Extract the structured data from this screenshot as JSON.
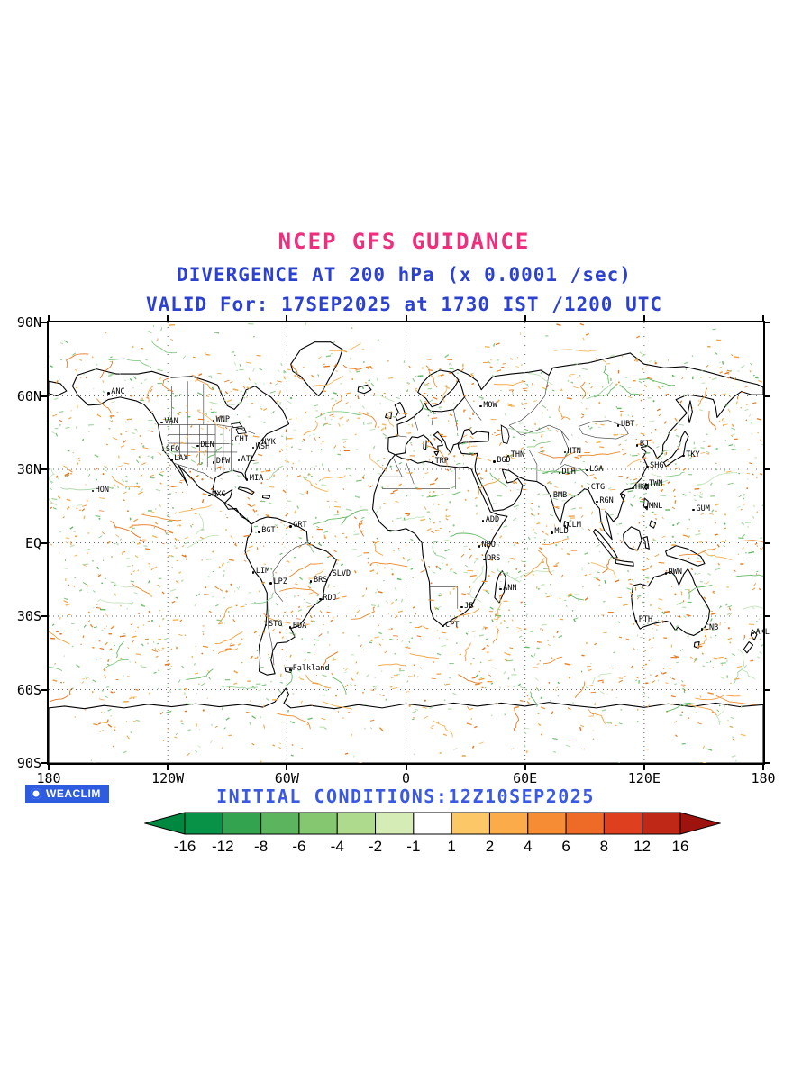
{
  "titles": {
    "main": "NCEP GFS GUIDANCE",
    "sub": "DIVERGENCE AT 200 hPa (x 0.0001 /sec)",
    "valid": "VALID For: 17SEP2025 at 1730 IST /1200 UTC"
  },
  "map": {
    "lat_ticks": [
      "90N",
      "60N",
      "30N",
      "EQ",
      "30S",
      "60S",
      "90S"
    ],
    "lon_ticks": [
      "180",
      "120W",
      "60W",
      "0",
      "60E",
      "120E",
      "180"
    ],
    "stations": [
      {
        "label": "ANC",
        "lon": -149.9,
        "lat": 61.2
      },
      {
        "label": "VAN",
        "lon": -123.1,
        "lat": 49.3
      },
      {
        "label": "WNP",
        "lon": -97.1,
        "lat": 49.9
      },
      {
        "label": "SFO",
        "lon": -122.4,
        "lat": 37.8
      },
      {
        "label": "LAX",
        "lon": -118.2,
        "lat": 34.0
      },
      {
        "label": "DEN",
        "lon": -104.9,
        "lat": 39.7
      },
      {
        "label": "DFW",
        "lon": -97.0,
        "lat": 32.9
      },
      {
        "label": "CHI",
        "lon": -87.6,
        "lat": 41.8
      },
      {
        "label": "NYK",
        "lon": -74.0,
        "lat": 40.7
      },
      {
        "label": "WSH",
        "lon": -77.0,
        "lat": 38.9
      },
      {
        "label": "ATL",
        "lon": -84.4,
        "lat": 33.7
      },
      {
        "label": "MIA",
        "lon": -80.2,
        "lat": 25.8
      },
      {
        "label": "HON",
        "lon": -157.9,
        "lat": 21.3
      },
      {
        "label": "MXC",
        "lon": -99.1,
        "lat": 19.4
      },
      {
        "label": "BGT",
        "lon": -74.1,
        "lat": 4.6
      },
      {
        "label": "GRT",
        "lon": -58.2,
        "lat": 6.8
      },
      {
        "label": "LIM",
        "lon": -77.0,
        "lat": -12.0
      },
      {
        "label": "LPZ",
        "lon": -68.1,
        "lat": -16.5
      },
      {
        "label": "SLVD",
        "lon": -38.5,
        "lat": -12.9
      },
      {
        "label": "BRS",
        "lon": -47.9,
        "lat": -15.8
      },
      {
        "label": "RDJ",
        "lon": -43.2,
        "lat": -22.9
      },
      {
        "label": "STG",
        "lon": -70.6,
        "lat": -33.5
      },
      {
        "label": "BUA",
        "lon": -58.4,
        "lat": -34.6
      },
      {
        "label": "Falkland",
        "lon": -58.5,
        "lat": -51.8
      },
      {
        "label": "MOW",
        "lon": 37.6,
        "lat": 55.8
      },
      {
        "label": "TRP",
        "lon": 13.2,
        "lat": 32.9
      },
      {
        "label": "BGD",
        "lon": 44.4,
        "lat": 33.3
      },
      {
        "label": "ADD",
        "lon": 38.7,
        "lat": 9.0
      },
      {
        "label": "NBO",
        "lon": 36.8,
        "lat": -1.3
      },
      {
        "label": "DRS",
        "lon": 39.3,
        "lat": -6.8
      },
      {
        "label": "ANN",
        "lon": 47.5,
        "lat": -18.9
      },
      {
        "label": "CPT",
        "lon": 18.4,
        "lat": -33.9
      },
      {
        "label": "JB",
        "lon": 28.0,
        "lat": -26.2
      },
      {
        "label": "MLD",
        "lon": 73.5,
        "lat": 4.2
      },
      {
        "label": "CLM",
        "lon": 79.9,
        "lat": 6.9
      },
      {
        "label": "THN",
        "lon": 51.4,
        "lat": 35.7
      },
      {
        "label": "DLH",
        "lon": 77.2,
        "lat": 28.6
      },
      {
        "label": "BMB",
        "lon": 72.8,
        "lat": 19.0
      },
      {
        "label": "CTG",
        "lon": 91.8,
        "lat": 22.3
      },
      {
        "label": "RGN",
        "lon": 96.2,
        "lat": 16.8
      },
      {
        "label": "HTN",
        "lon": 79.9,
        "lat": 37.1
      },
      {
        "label": "LSA",
        "lon": 91.1,
        "lat": 29.7
      },
      {
        "label": "UBT",
        "lon": 106.9,
        "lat": 47.9
      },
      {
        "label": "BJ",
        "lon": 116.4,
        "lat": 39.9
      },
      {
        "label": "SHG",
        "lon": 121.5,
        "lat": 31.2
      },
      {
        "label": "TKY",
        "lon": 139.7,
        "lat": 35.7
      },
      {
        "label": "TWN",
        "lon": 121.0,
        "lat": 23.8
      },
      {
        "label": "HKN",
        "lon": 114.2,
        "lat": 22.3
      },
      {
        "label": "MNL",
        "lon": 121.0,
        "lat": 14.6
      },
      {
        "label": "GUM",
        "lon": 144.8,
        "lat": 13.5
      },
      {
        "label": "DWN",
        "lon": 130.8,
        "lat": -12.5
      },
      {
        "label": "PTH",
        "lon": 115.9,
        "lat": -32.0
      },
      {
        "label": "CNB",
        "lon": 149.1,
        "lat": -35.3
      },
      {
        "label": "AKL",
        "lon": 174.8,
        "lat": -36.9
      }
    ]
  },
  "footer": {
    "logo_text": "WEACLIM",
    "initial_conditions": "INITIAL CONDITIONS:12Z10SEP2025"
  },
  "colorbar": {
    "labels": [
      "-16",
      "-12",
      "-8",
      "-6",
      "-4",
      "-2",
      "-1",
      "1",
      "2",
      "4",
      "6",
      "8",
      "12",
      "16"
    ],
    "segment_colors": [
      "#089247",
      "#33a34f",
      "#5cb45e",
      "#85c671",
      "#aeda8d",
      "#d6ecb6",
      "#ffffff",
      "#fcc766",
      "#fbab4a",
      "#f68d35",
      "#ee6a27",
      "#de3f1f",
      "#bf2716"
    ],
    "left_arrow_color": "#008740",
    "right_arrow_color": "#9f130e"
  },
  "chart_data": {
    "type": "heatmap",
    "title": "NCEP GFS GUIDANCE",
    "subtitle": "DIVERGENCE AT 200 hPa (x 0.0001 /sec)",
    "valid": "VALID For: 17SEP2025 at 1730 IST /1200 UTC",
    "initial_conditions": "INITIAL CONDITIONS:12Z10SEP2025",
    "units": "x 0.0001 /sec",
    "projection": "equirectangular world map",
    "xlim": [
      -180,
      180
    ],
    "ylim": [
      -90,
      90
    ],
    "x_ticks": [
      "180",
      "120W",
      "60W",
      "0",
      "60E",
      "120E",
      "180"
    ],
    "y_ticks": [
      "90N",
      "60N",
      "30N",
      "EQ",
      "30S",
      "60S",
      "90S"
    ],
    "grid": "dotted at 30 degree intervals",
    "colorbar_levels": [
      -16,
      -12,
      -8,
      -6,
      -4,
      -2,
      -1,
      1,
      2,
      4,
      6,
      8,
      12,
      16
    ],
    "colorbar_colors": [
      "#008740",
      "#089247",
      "#33a34f",
      "#5cb45e",
      "#85c671",
      "#aeda8d",
      "#d6ecb6",
      "#ffffff",
      "#fcc766",
      "#fbab4a",
      "#f68d35",
      "#ee6a27",
      "#de3f1f",
      "#bf2716",
      "#9f130e"
    ],
    "field_description": "Scattered filamentary patches of divergence (orange, positive) and convergence (green, negative) over the globe, mostly within -2 to +2 range"
  }
}
